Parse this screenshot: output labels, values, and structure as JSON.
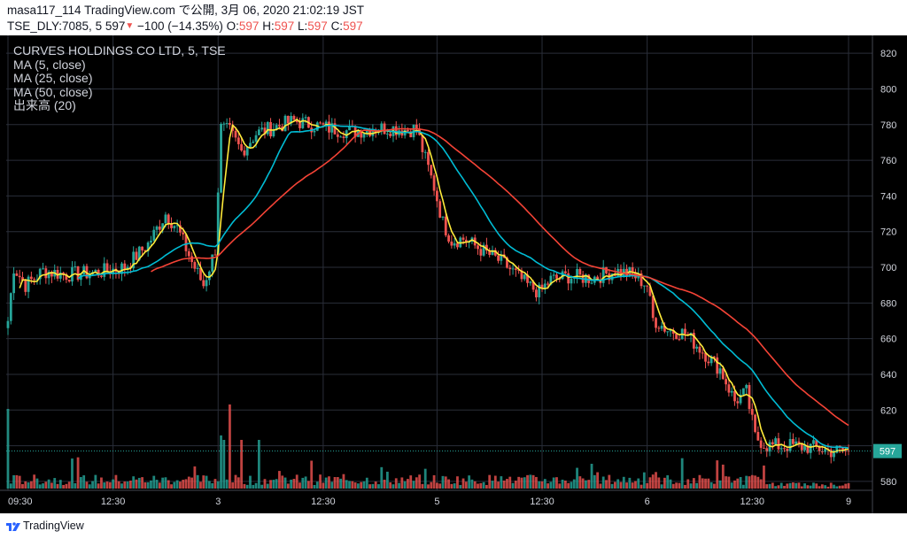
{
  "header": {
    "publish_line": "masa117_114 TradingView.com で公開, 3月 06, 2020 21:02:19 JST",
    "symbol": "TSE_DLY:7085, 5",
    "last_price": "597",
    "change_arrow": "▼",
    "change": "−100 (−14.35%)",
    "o_label": "O:",
    "o_value": "597",
    "h_label": "H:",
    "h_value": "597",
    "l_label": "L:",
    "l_value": "597",
    "c_label": "C:",
    "c_value": "597"
  },
  "legend": {
    "title": "CURVES HOLDINGS CO LTD, 5, TSE",
    "ma5": "MA (5, close)",
    "ma25": "MA (25, close)",
    "ma50": "MA (50, close)",
    "volume": "出来高 (20)"
  },
  "footer": {
    "brand": "TradingView"
  },
  "colors": {
    "up": "#26a69a",
    "down": "#ef5350",
    "ma5": "#ffeb3b",
    "ma25": "#00bcd4",
    "ma50": "#f44336",
    "grid": "#2a2e39",
    "text": "#d1d4dc",
    "price_tag": "#26a69a"
  },
  "chart_data": {
    "type": "line",
    "title": "CURVES HOLDINGS CO LTD, 5, TSE",
    "y_range": [
      575,
      830
    ],
    "y_ticks": [
      580,
      600,
      620,
      640,
      660,
      680,
      700,
      720,
      740,
      760,
      780,
      800,
      820
    ],
    "x_ticks": [
      "09:30",
      "12:30",
      "3",
      "12:30",
      "5",
      "12:30",
      "6",
      "12:30",
      "9"
    ],
    "x_tick_bars": [
      0,
      36,
      72,
      108,
      147,
      183,
      219,
      255,
      288
    ],
    "bar_count": 289,
    "last_price_label": "597",
    "anchors_close": [
      [
        0,
        670
      ],
      [
        2,
        700
      ],
      [
        6,
        690
      ],
      [
        12,
        698
      ],
      [
        20,
        696
      ],
      [
        30,
        697
      ],
      [
        40,
        700
      ],
      [
        48,
        713
      ],
      [
        54,
        730
      ],
      [
        58,
        722
      ],
      [
        63,
        703
      ],
      [
        67,
        690
      ],
      [
        69,
        700
      ],
      [
        71,
        710
      ],
      [
        73,
        778
      ],
      [
        76,
        776
      ],
      [
        80,
        765
      ],
      [
        85,
        775
      ],
      [
        92,
        779
      ],
      [
        98,
        782
      ],
      [
        104,
        780
      ],
      [
        110,
        778
      ],
      [
        118,
        776
      ],
      [
        126,
        778
      ],
      [
        132,
        778
      ],
      [
        137,
        777
      ],
      [
        140,
        778
      ],
      [
        142,
        766
      ],
      [
        146,
        745
      ],
      [
        149,
        725
      ],
      [
        152,
        715
      ],
      [
        156,
        716
      ],
      [
        162,
        710
      ],
      [
        170,
        702
      ],
      [
        178,
        690
      ],
      [
        182,
        686
      ],
      [
        186,
        693
      ],
      [
        192,
        695
      ],
      [
        200,
        694
      ],
      [
        208,
        698
      ],
      [
        214,
        696
      ],
      [
        219,
        690
      ],
      [
        221,
        671
      ],
      [
        226,
        665
      ],
      [
        232,
        663
      ],
      [
        238,
        653
      ],
      [
        244,
        643
      ],
      [
        249,
        625
      ],
      [
        253,
        630
      ],
      [
        256,
        605
      ],
      [
        260,
        600
      ],
      [
        268,
        600
      ],
      [
        276,
        599
      ],
      [
        282,
        597
      ],
      [
        288,
        597
      ]
    ],
    "series": [
      {
        "name": "MA (5, close)",
        "color": "#ffeb3b"
      },
      {
        "name": "MA (25, close)",
        "color": "#00bcd4"
      },
      {
        "name": "MA (50, close)",
        "color": "#f44336"
      },
      {
        "name": "出来高 (20)",
        "color": "#26a69a"
      }
    ]
  }
}
